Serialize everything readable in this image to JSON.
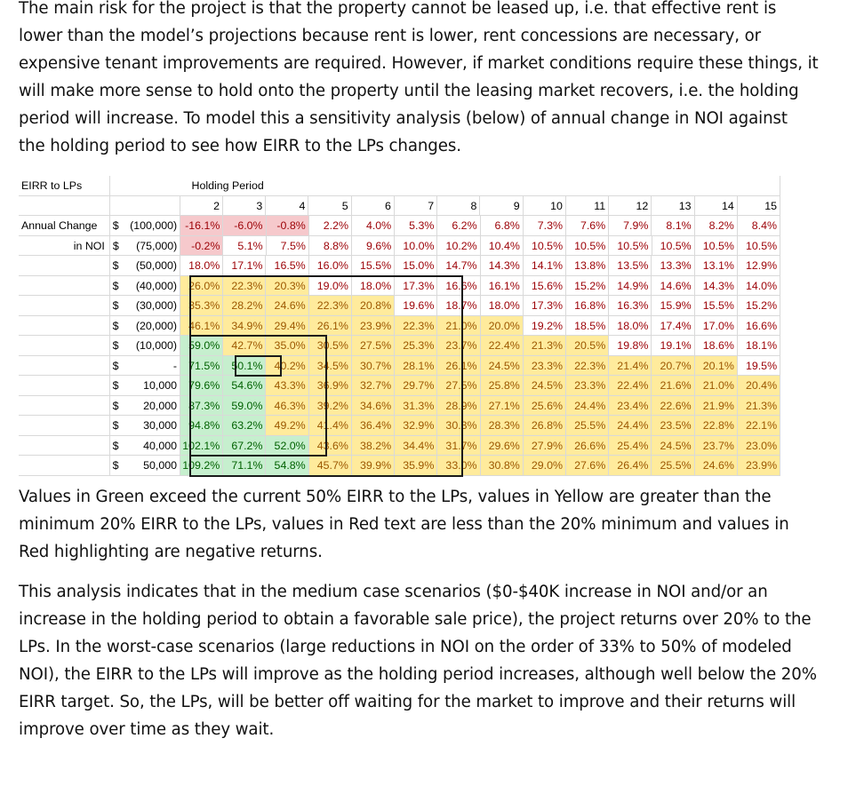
{
  "paragraphs": {
    "intro": "The main risk for the project is that the property cannot be leased up, i.e. that effective rent is lower than the model’s projections because rent is lower, rent concessions are necessary, or expensive tenant improvements are required.  However, if market conditions require these things, it will make more sense to hold onto the property until the leasing market recovers, i.e. the holding period will increase.  To model this a sensitivity analysis (below) of annual change in NOI against the holding period to see how EIRR to the LPs changes.",
    "legend": "Values in Green exceed the current 50% EIRR to the LPs, values in Yellow are greater than the minimum 20% EIRR to the LPs, values in Red text are less than the 20% minimum and values in Red highlighting are negative returns.",
    "analysis": "This analysis indicates that in the medium case scenarios ($0-$40K increase in NOI and/or an increase in the holding period to obtain a favorable sale price), the project returns over 20% to the LPs.  In the worst-case scenarios (large reductions in NOI on the order of 33% to 50% of modeled NOI), the EIRR to the LPs will improve as the holding period increases, although well below the 20% EIRR target. So, the LPs, will be better off waiting for the market to improve and their returns will improve over time as they wait."
  },
  "table": {
    "corner_label": "EIRR to LPs",
    "column_group_label": "Holding Period",
    "row_group_label_line1": "Annual Change",
    "row_group_label_line2": "in NOI",
    "holding_periods": [
      "2",
      "3",
      "4",
      "5",
      "6",
      "7",
      "8",
      "9",
      "10",
      "11",
      "12",
      "13",
      "14",
      "15"
    ],
    "rows": [
      {
        "sym": "$",
        "amt": "(100,000)",
        "cells": [
          "-16.1%",
          "-6.0%",
          "-0.8%",
          "2.2%",
          "4.0%",
          "5.3%",
          "6.2%",
          "6.8%",
          "7.3%",
          "7.6%",
          "7.9%",
          "8.1%",
          "8.2%",
          "8.4%"
        ]
      },
      {
        "sym": "$",
        "amt": "(75,000)",
        "cells": [
          "-0.2%",
          "5.1%",
          "7.5%",
          "8.8%",
          "9.6%",
          "10.0%",
          "10.2%",
          "10.4%",
          "10.5%",
          "10.5%",
          "10.5%",
          "10.5%",
          "10.5%",
          "10.5%"
        ]
      },
      {
        "sym": "$",
        "amt": "(50,000)",
        "cells": [
          "18.0%",
          "17.1%",
          "16.5%",
          "16.0%",
          "15.5%",
          "15.0%",
          "14.7%",
          "14.3%",
          "14.1%",
          "13.8%",
          "13.5%",
          "13.3%",
          "13.1%",
          "12.9%"
        ]
      },
      {
        "sym": "$",
        "amt": "(40,000)",
        "cells": [
          "26.0%",
          "22.3%",
          "20.3%",
          "19.0%",
          "18.0%",
          "17.3%",
          "16.6%",
          "16.1%",
          "15.6%",
          "15.2%",
          "14.9%",
          "14.6%",
          "14.3%",
          "14.0%"
        ]
      },
      {
        "sym": "$",
        "amt": "(30,000)",
        "cells": [
          "35.3%",
          "28.2%",
          "24.6%",
          "22.3%",
          "20.8%",
          "19.6%",
          "18.7%",
          "18.0%",
          "17.3%",
          "16.8%",
          "16.3%",
          "15.9%",
          "15.5%",
          "15.2%"
        ]
      },
      {
        "sym": "$",
        "amt": "(20,000)",
        "cells": [
          "46.1%",
          "34.9%",
          "29.4%",
          "26.1%",
          "23.9%",
          "22.3%",
          "21.0%",
          "20.0%",
          "19.2%",
          "18.5%",
          "18.0%",
          "17.4%",
          "17.0%",
          "16.6%"
        ]
      },
      {
        "sym": "$",
        "amt": "(10,000)",
        "cells": [
          "59.0%",
          "42.7%",
          "35.0%",
          "30.5%",
          "27.5%",
          "25.3%",
          "23.7%",
          "22.4%",
          "21.3%",
          "20.5%",
          "19.8%",
          "19.1%",
          "18.6%",
          "18.1%"
        ]
      },
      {
        "sym": "$",
        "amt": "-",
        "cells": [
          "71.5%",
          "50.1%",
          "40.2%",
          "34.5%",
          "30.7%",
          "28.1%",
          "26.1%",
          "24.5%",
          "23.3%",
          "22.3%",
          "21.4%",
          "20.7%",
          "20.1%",
          "19.5%"
        ]
      },
      {
        "sym": "$",
        "amt": "10,000",
        "cells": [
          "79.6%",
          "54.6%",
          "43.3%",
          "36.9%",
          "32.7%",
          "29.7%",
          "27.5%",
          "25.8%",
          "24.5%",
          "23.3%",
          "22.4%",
          "21.6%",
          "21.0%",
          "20.4%"
        ]
      },
      {
        "sym": "$",
        "amt": "20,000",
        "cells": [
          "87.3%",
          "59.0%",
          "46.3%",
          "39.2%",
          "34.6%",
          "31.3%",
          "28.9%",
          "27.1%",
          "25.6%",
          "24.4%",
          "23.4%",
          "22.6%",
          "21.9%",
          "21.3%"
        ]
      },
      {
        "sym": "$",
        "amt": "30,000",
        "cells": [
          "94.8%",
          "63.2%",
          "49.2%",
          "41.4%",
          "36.4%",
          "32.9%",
          "30.3%",
          "28.3%",
          "26.8%",
          "25.5%",
          "24.4%",
          "23.5%",
          "22.8%",
          "22.1%"
        ]
      },
      {
        "sym": "$",
        "amt": "40,000",
        "cells": [
          "102.1%",
          "67.2%",
          "52.0%",
          "43.6%",
          "38.2%",
          "34.4%",
          "31.7%",
          "29.6%",
          "27.9%",
          "26.6%",
          "25.4%",
          "24.5%",
          "23.7%",
          "23.0%"
        ]
      },
      {
        "sym": "$",
        "amt": "50,000",
        "cells": [
          "109.2%",
          "71.1%",
          "54.8%",
          "45.7%",
          "39.9%",
          "35.9%",
          "33.0%",
          "30.8%",
          "29.0%",
          "27.6%",
          "26.4%",
          "25.5%",
          "24.6%",
          "23.9%"
        ]
      }
    ],
    "colors": {
      "red_fill": "#f6c9cc",
      "red_text": "#9c0006",
      "green_fill": "#c6efce",
      "green_text": "#006100",
      "yellow_fill": "#ffeb9c",
      "yellow_text": "#9c5700",
      "box_border": "#1a1a1a"
    }
  }
}
